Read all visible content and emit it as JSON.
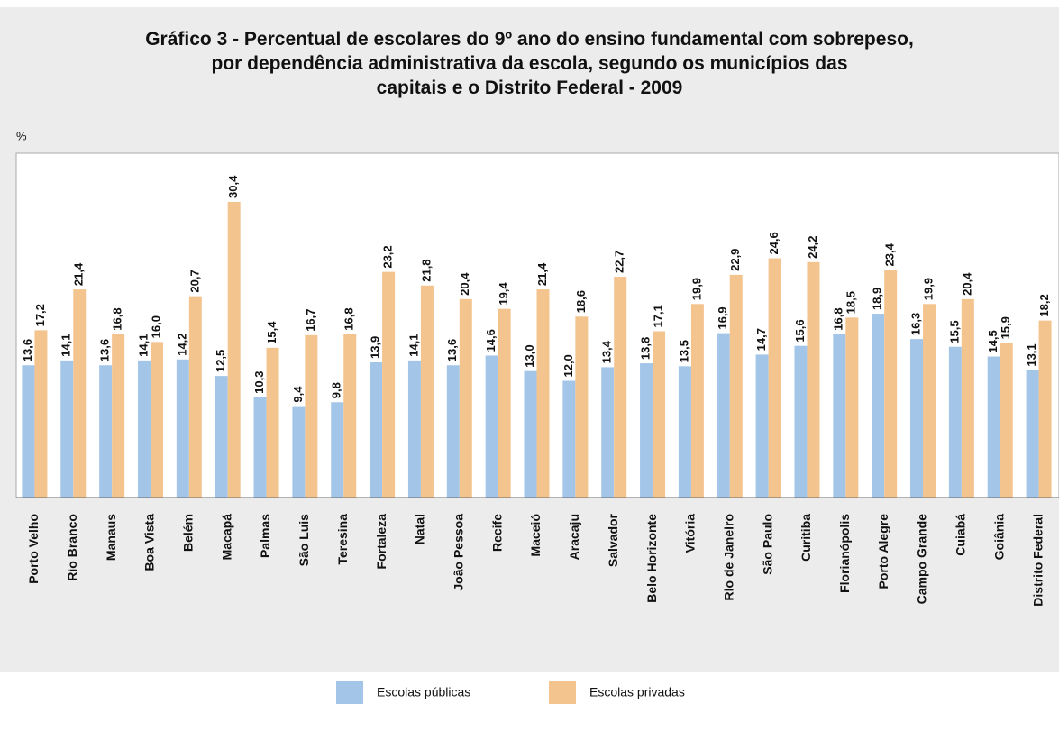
{
  "chart_data": {
    "type": "bar",
    "title": "Gráfico 3 - Percentual de escolares do 9º ano do ensino fundamental com sobrepeso,\npor dependência administrativa da escola, segundo os municípios das\ncapitais e o Distrito Federal - 2009",
    "y_label": "%",
    "categories": [
      "Porto Velho",
      "Rio Branco",
      "Manaus",
      "Boa Vista",
      "Belém",
      "Macapá",
      "Palmas",
      "São Luis",
      "Teresina",
      "Fortaleza",
      "Natal",
      "João Pessoa",
      "Recife",
      "Maceió",
      "Aracaju",
      "Salvador",
      "Belo Horizonte",
      "Vitória",
      "Rio de Janeiro",
      "São Paulo",
      "Curitiba",
      "Florianópolis",
      "Porto Alegre",
      "Campo Grande",
      "Cuiabá",
      "Goiânia",
      "Distrito Federal"
    ],
    "series": [
      {
        "name": "Escolas públicas",
        "color": "#a3c6e8",
        "values": [
          13.6,
          14.1,
          13.6,
          14.1,
          14.2,
          12.5,
          10.3,
          9.4,
          9.8,
          13.9,
          14.1,
          13.6,
          14.6,
          13.0,
          12.0,
          13.4,
          13.8,
          13.5,
          16.9,
          14.7,
          15.6,
          16.8,
          18.9,
          16.3,
          15.5,
          14.5,
          13.1
        ],
        "value_labels": [
          "13,6",
          "14,1",
          "13,6",
          "14,1",
          "14,2",
          "12,5",
          "10,3",
          "9,4",
          "9,8",
          "13,9",
          "14,1",
          "13,6",
          "14,6",
          "13,0",
          "12,0",
          "13,4",
          "13,8",
          "13,5",
          "16,9",
          "14,7",
          "15,6",
          "16,8",
          "18,9",
          "16,3",
          "15,5",
          "14,5",
          "13,1"
        ]
      },
      {
        "name": "Escolas privadas",
        "color": "#f4c48f",
        "values": [
          17.2,
          21.4,
          16.8,
          16.0,
          20.7,
          30.4,
          15.4,
          16.7,
          16.8,
          23.2,
          21.8,
          20.4,
          19.4,
          21.4,
          18.6,
          22.7,
          17.1,
          19.9,
          22.9,
          24.6,
          24.2,
          18.5,
          23.4,
          19.9,
          20.4,
          15.9,
          18.2
        ],
        "value_labels": [
          "17,2",
          "21,4",
          "16,8",
          "16,0",
          "20,7",
          "30,4",
          "15,4",
          "16,7",
          "16,8",
          "23,2",
          "21,8",
          "20,4",
          "19,4",
          "21,4",
          "18,6",
          "22,7",
          "17,1",
          "19,9",
          "22,9",
          "24,6",
          "24,2",
          "18,5",
          "23,4",
          "19,9",
          "20,4",
          "15,9",
          "18,2"
        ]
      }
    ],
    "ylim": [
      0,
      35.4
    ]
  }
}
